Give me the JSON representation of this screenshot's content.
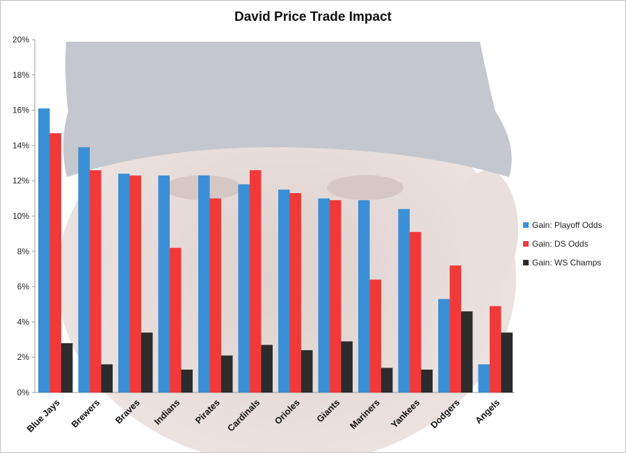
{
  "chart_data": {
    "type": "bar",
    "title": "David Price Trade Impact",
    "categories": [
      "Blue Jays",
      "Brewers",
      "Braves",
      "Indians",
      "Pirates",
      "Cardinals",
      "Orioles",
      "Giants",
      "Mariners",
      "Yankees",
      "Dodgers",
      "Angels"
    ],
    "series": [
      {
        "name": "Gain: Playoff Odds",
        "color": "#3a8fd6",
        "values": [
          16.1,
          13.9,
          12.4,
          12.3,
          12.3,
          11.8,
          11.5,
          11.0,
          10.9,
          10.4,
          5.3,
          1.6
        ]
      },
      {
        "name": "Gain: DS Odds",
        "color": "#f03a3a",
        "values": [
          14.7,
          12.6,
          12.3,
          8.2,
          11.0,
          12.6,
          11.3,
          10.9,
          6.4,
          9.1,
          7.2,
          4.9
        ]
      },
      {
        "name": "Gain: WS Champs",
        "color": "#2c2c2c",
        "values": [
          2.8,
          1.6,
          3.4,
          1.3,
          2.1,
          2.7,
          2.4,
          2.9,
          1.4,
          1.3,
          4.6,
          3.4
        ]
      }
    ],
    "yticks": [
      "0%",
      "2%",
      "4%",
      "6%",
      "8%",
      "10%",
      "12%",
      "14%",
      "16%",
      "18%",
      "20%"
    ],
    "ylim": [
      0,
      20
    ],
    "grid": false,
    "legend_position": "right"
  }
}
